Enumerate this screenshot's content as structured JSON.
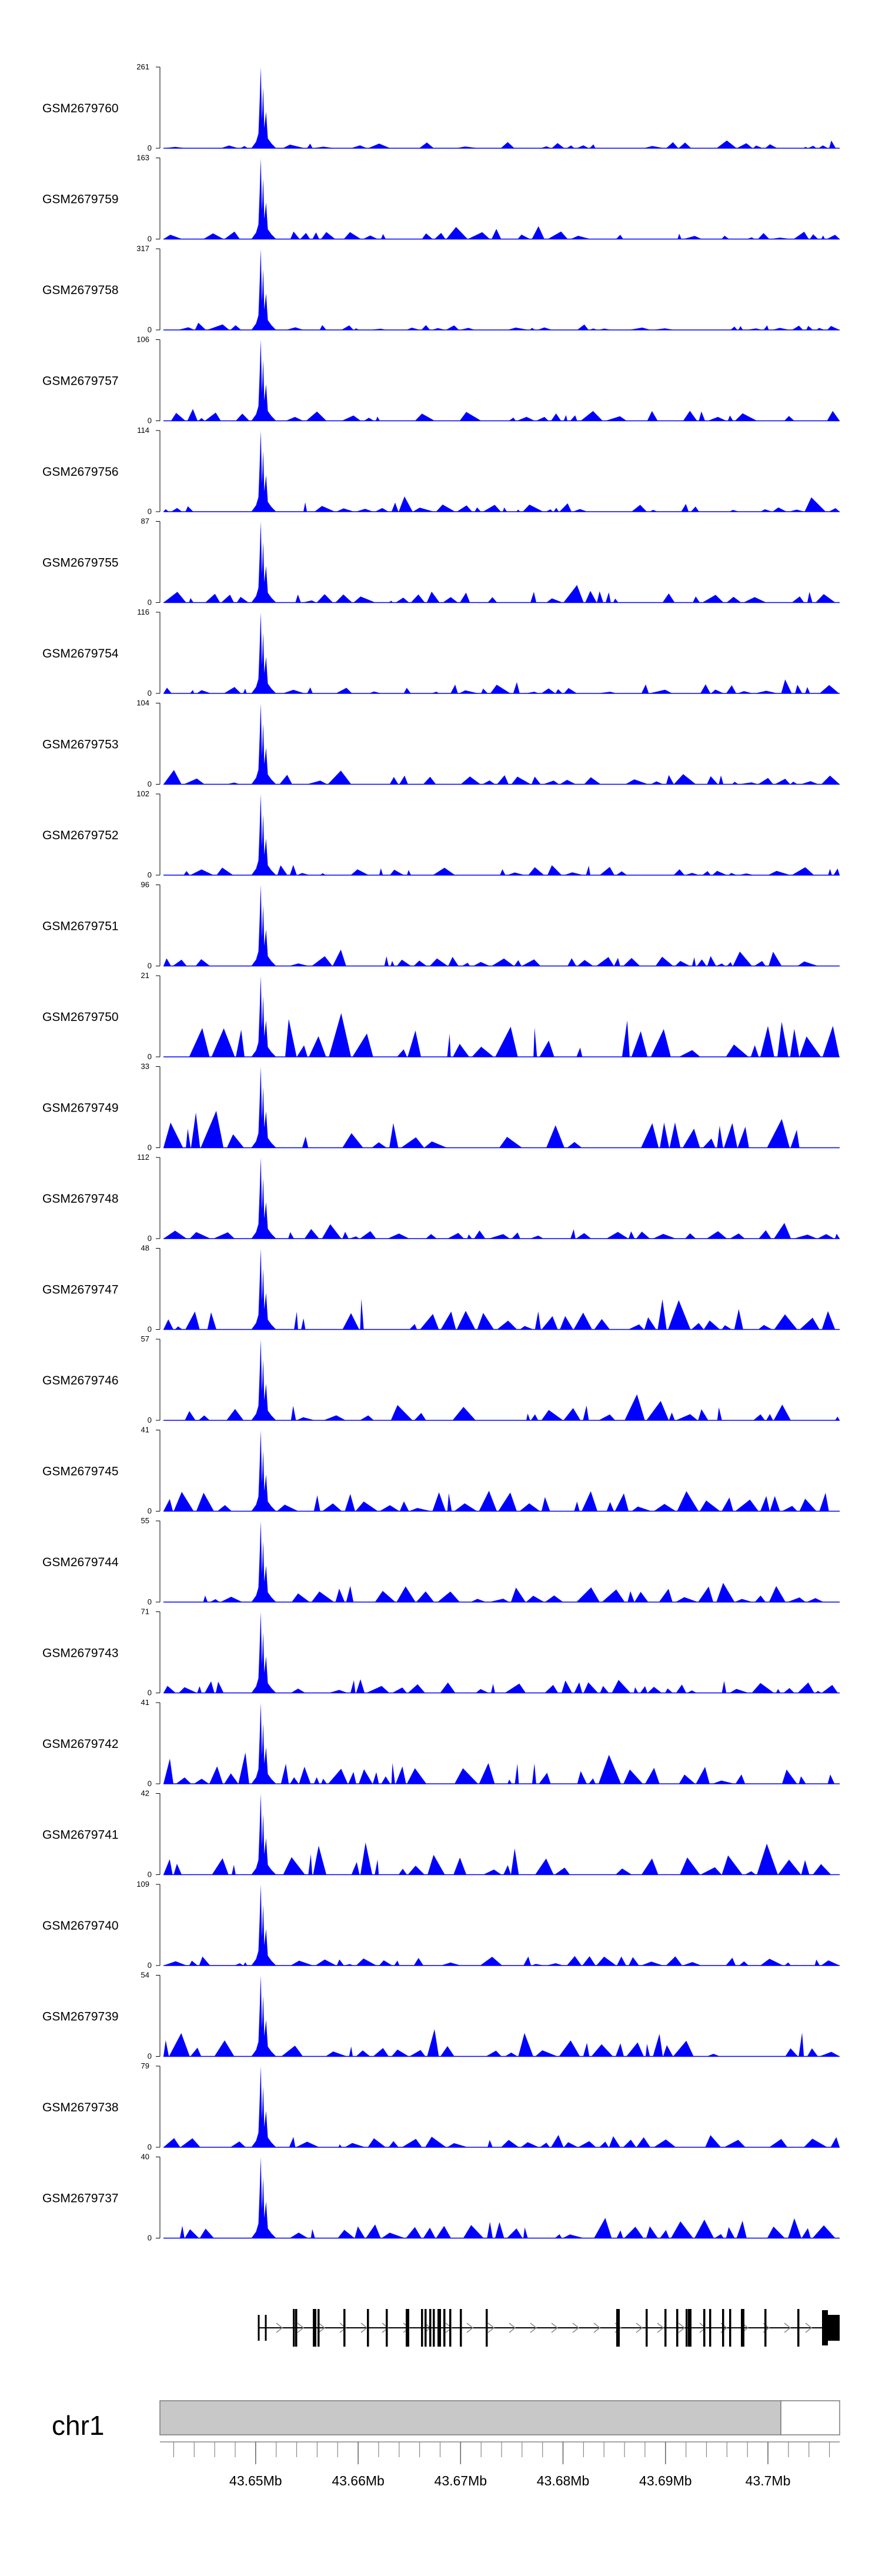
{
  "chart_data": {
    "type": "area",
    "title": "",
    "color_signal": "#0000ff",
    "color_gene": "#000000",
    "chromosome": "chr1",
    "genome_axis": {
      "range_mb": [
        43.641,
        43.707
      ],
      "ticks": [
        "43.65Mb",
        "43.66Mb",
        "43.67Mb",
        "43.68Mb",
        "43.69Mb",
        "43.7Mb"
      ],
      "tick_values_mb": [
        43.65,
        43.66,
        43.67,
        43.68,
        43.69,
        43.7
      ]
    },
    "peak_position_mb": 43.6505,
    "tracks": [
      {
        "name": "GSM2679760",
        "ymax": "261",
        "ymin": "0",
        "max_value": 261
      },
      {
        "name": "GSM2679759",
        "ymax": "163",
        "ymin": "0",
        "max_value": 163
      },
      {
        "name": "GSM2679758",
        "ymax": "317",
        "ymin": "0",
        "max_value": 317
      },
      {
        "name": "GSM2679757",
        "ymax": "106",
        "ymin": "0",
        "max_value": 106
      },
      {
        "name": "GSM2679756",
        "ymax": "114",
        "ymin": "0",
        "max_value": 114
      },
      {
        "name": "GSM2679755",
        "ymax": "87",
        "ymin": "0",
        "max_value": 87
      },
      {
        "name": "GSM2679754",
        "ymax": "116",
        "ymin": "0",
        "max_value": 116
      },
      {
        "name": "GSM2679753",
        "ymax": "104",
        "ymin": "0",
        "max_value": 104
      },
      {
        "name": "GSM2679752",
        "ymax": "102",
        "ymin": "0",
        "max_value": 102
      },
      {
        "name": "GSM2679751",
        "ymax": "96",
        "ymin": "0",
        "max_value": 96
      },
      {
        "name": "GSM2679750",
        "ymax": "21",
        "ymin": "0",
        "max_value": 21
      },
      {
        "name": "GSM2679749",
        "ymax": "33",
        "ymin": "0",
        "max_value": 33
      },
      {
        "name": "GSM2679748",
        "ymax": "112",
        "ymin": "0",
        "max_value": 112
      },
      {
        "name": "GSM2679747",
        "ymax": "48",
        "ymin": "0",
        "max_value": 48
      },
      {
        "name": "GSM2679746",
        "ymax": "57",
        "ymin": "0",
        "max_value": 57
      },
      {
        "name": "GSM2679745",
        "ymax": "41",
        "ymin": "0",
        "max_value": 41
      },
      {
        "name": "GSM2679744",
        "ymax": "55",
        "ymin": "0",
        "max_value": 55
      },
      {
        "name": "GSM2679743",
        "ymax": "71",
        "ymin": "0",
        "max_value": 71
      },
      {
        "name": "GSM2679742",
        "ymax": "41",
        "ymin": "0",
        "max_value": 41
      },
      {
        "name": "GSM2679741",
        "ymax": "42",
        "ymin": "0",
        "max_value": 42
      },
      {
        "name": "GSM2679740",
        "ymax": "109",
        "ymin": "0",
        "max_value": 109
      },
      {
        "name": "GSM2679739",
        "ymax": "54",
        "ymin": "0",
        "max_value": 54
      },
      {
        "name": "GSM2679738",
        "ymax": "79",
        "ymin": "0",
        "max_value": 79
      },
      {
        "name": "GSM2679737",
        "ymax": "40",
        "ymin": "0",
        "max_value": 40
      }
    ]
  }
}
